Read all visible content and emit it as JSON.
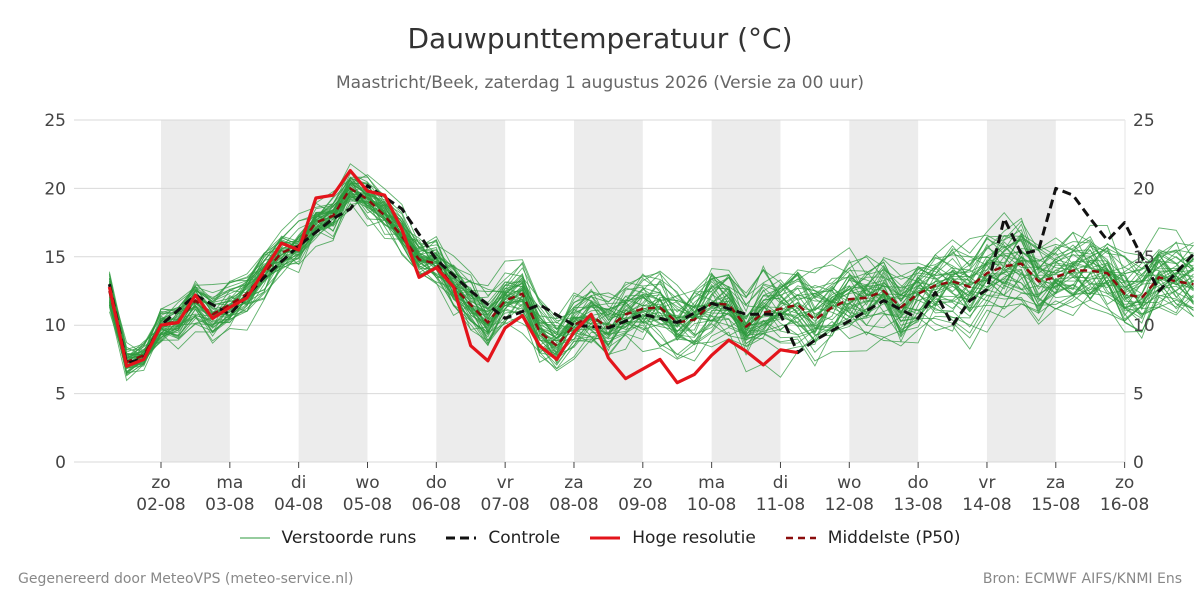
{
  "title": "Dauwpunttemperatuur (°C)",
  "subtitle": "Maastricht/Beek, zaterdag  1 augustus 2026 (Versie za 00 uur)",
  "footer_left": "Gegenereerd door MeteoVPS (meteo-service.nl)",
  "footer_right": "Bron: ECMWF AIFS/KNMI Ens",
  "colors": {
    "ensemble": "#2e9a3e",
    "control": "#111111",
    "highres": "#e3141b",
    "median": "#8b0d0d",
    "weekend_band": "#ececec",
    "grid": "#d9d9d9"
  },
  "legend": [
    {
      "key": "ensemble",
      "label": "Verstoorde runs",
      "style": "thin-solid"
    },
    {
      "key": "control",
      "label": "Controle",
      "style": "dashed"
    },
    {
      "key": "highres",
      "label": "Hoge resolutie",
      "style": "thick-solid"
    },
    {
      "key": "median",
      "label": "Middelste (P50)",
      "style": "dashed"
    }
  ],
  "chart_data": {
    "type": "line",
    "title": "Dauwpunttemperatuur (°C)",
    "ylim": [
      0,
      25
    ],
    "yticks": [
      0,
      5,
      10,
      15,
      20,
      25
    ],
    "xlim": [
      -3,
      15
    ],
    "x_unit": "days since 02-08",
    "x_label_ticks": [
      {
        "day": "zo",
        "date": "02-08"
      },
      {
        "day": "ma",
        "date": "03-08"
      },
      {
        "day": "di",
        "date": "04-08"
      },
      {
        "day": "wo",
        "date": "05-08"
      },
      {
        "day": "do",
        "date": "06-08"
      },
      {
        "day": "vr",
        "date": "07-08"
      },
      {
        "day": "za",
        "date": "08-08"
      },
      {
        "day": "zo",
        "date": "09-08"
      },
      {
        "day": "ma",
        "date": "10-08"
      },
      {
        "day": "di",
        "date": "11-08"
      },
      {
        "day": "wo",
        "date": "12-08"
      },
      {
        "day": "do",
        "date": "13-08"
      },
      {
        "day": "vr",
        "date": "14-08"
      },
      {
        "day": "za",
        "date": "15-08"
      },
      {
        "day": "zo",
        "date": "16-08"
      }
    ],
    "shaded_days": [
      "02-08",
      "04-08",
      "06-08",
      "08-08",
      "10-08",
      "12-08",
      "14-08"
    ],
    "series": [
      {
        "name": "Hoge resolutie",
        "type": "highres",
        "x": [
          -0.75,
          -0.5,
          -0.25,
          0,
          0.25,
          0.5,
          0.75,
          1,
          1.25,
          1.5,
          1.75,
          2,
          2.25,
          2.5,
          2.75,
          3,
          3.25,
          3.5,
          3.75,
          4,
          4.25,
          4.5,
          4.75,
          5,
          5.25,
          5.5,
          5.75,
          6,
          6.25,
          6.5,
          6.75,
          7,
          7.25,
          7.5,
          7.75,
          8,
          8.25,
          8.5,
          8.75,
          9,
          9.25
        ],
        "y": [
          12.8,
          7.0,
          7.5,
          10.0,
          10.2,
          12.2,
          10.5,
          11.3,
          12.0,
          14.0,
          16.0,
          15.5,
          19.3,
          19.5,
          21.3,
          19.8,
          19.5,
          17.0,
          13.5,
          14.2,
          12.8,
          8.5,
          7.4,
          9.8,
          10.7,
          8.5,
          7.5,
          9.5,
          10.8,
          7.6,
          6.1,
          6.8,
          7.5,
          5.8,
          6.4,
          7.8,
          8.9,
          8.1,
          7.1,
          8.2,
          8.0
        ]
      },
      {
        "name": "Controle",
        "type": "control",
        "x": [
          -0.75,
          -0.5,
          -0.25,
          0,
          0.5,
          1,
          1.5,
          2,
          2.5,
          2.75,
          3,
          3.5,
          4,
          4.5,
          5,
          5.5,
          6,
          6.5,
          7,
          7.5,
          8,
          8.5,
          9,
          9.25,
          9.5,
          10,
          10.5,
          11,
          11.25,
          11.5,
          11.75,
          12,
          12.25,
          12.5,
          12.75,
          13,
          13.25,
          13.5,
          13.75,
          14,
          14.5,
          15
        ],
        "y": [
          13.0,
          7.2,
          7.6,
          10.0,
          12.2,
          10.8,
          13.5,
          15.8,
          17.8,
          18.5,
          20.2,
          18.5,
          14.8,
          12.5,
          10.5,
          11.5,
          10.0,
          9.8,
          10.8,
          10.2,
          11.6,
          10.8,
          10.8,
          8.0,
          8.9,
          10.3,
          11.8,
          10.5,
          12.4,
          10.0,
          11.8,
          12.6,
          17.8,
          15.2,
          15.5,
          20.0,
          19.5,
          17.8,
          16.2,
          17.5,
          12.5,
          15.2
        ]
      },
      {
        "name": "Middelste (P50)",
        "type": "median",
        "x": [
          -0.75,
          -0.5,
          -0.25,
          0,
          0.25,
          0.5,
          0.75,
          1,
          1.25,
          1.5,
          1.75,
          2,
          2.25,
          2.5,
          2.75,
          3,
          3.25,
          3.5,
          3.75,
          4,
          4.25,
          4.5,
          4.75,
          5,
          5.25,
          5.5,
          5.75,
          6,
          6.25,
          6.5,
          6.75,
          7,
          7.25,
          7.5,
          7.75,
          8,
          8.25,
          8.5,
          8.75,
          9,
          9.25,
          9.5,
          9.75,
          10,
          10.25,
          10.5,
          10.75,
          11,
          11.25,
          11.5,
          11.75,
          12,
          12.25,
          12.5,
          12.75,
          13,
          13.25,
          13.5,
          13.75,
          14,
          14.25,
          14.5,
          14.75,
          15
        ],
        "y": [
          12.5,
          7.3,
          7.8,
          10.0,
          10.3,
          11.8,
          10.8,
          11.5,
          12.3,
          13.8,
          15.3,
          15.8,
          17.5,
          18.0,
          20.0,
          19.2,
          18.0,
          16.5,
          14.8,
          14.5,
          12.8,
          11.5,
          10.2,
          11.8,
          12.3,
          9.5,
          8.5,
          10.0,
          10.7,
          9.8,
          10.8,
          11.2,
          11.3,
          10.2,
          10.4,
          11.6,
          11.5,
          9.9,
          10.9,
          11.2,
          11.5,
          10.4,
          11.3,
          11.9,
          12.0,
          12.5,
          11.3,
          12.3,
          12.9,
          13.2,
          12.8,
          13.8,
          14.3,
          14.5,
          13.2,
          13.5,
          14.0,
          14.0,
          13.8,
          12.3,
          12.0,
          13.5,
          13.2,
          13.0
        ]
      },
      {
        "name": "Verstoorde runs",
        "type": "ensemble",
        "member_count": 50
      }
    ]
  }
}
